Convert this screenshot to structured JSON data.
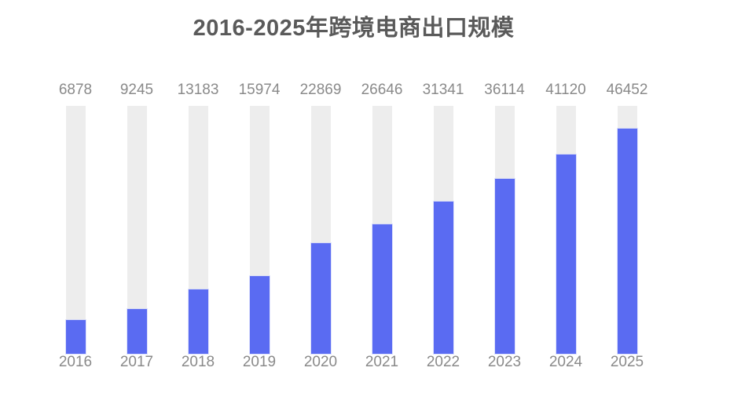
{
  "chart_data": {
    "type": "bar",
    "title": "2016-2025年跨境电商出口规模",
    "categories": [
      "2016",
      "2017",
      "2018",
      "2019",
      "2020",
      "2021",
      "2022",
      "2023",
      "2024",
      "2025"
    ],
    "values": [
      6878,
      9245,
      13183,
      15974,
      22869,
      26646,
      31341,
      36114,
      41120,
      46452
    ],
    "xlabel": "",
    "ylabel": "",
    "ylim": [
      0,
      51100
    ],
    "layout": {
      "grid": false,
      "legend": "none",
      "axes_lines": "none",
      "value_labels_position": "above bars",
      "background_track": true
    },
    "colors": {
      "bar_fill": "#5A6BF2",
      "bar_track": "#EDEDED",
      "label_text": "#8A8A8A",
      "title_text": "#5A5A5A",
      "background": "#FFFFFF"
    }
  }
}
